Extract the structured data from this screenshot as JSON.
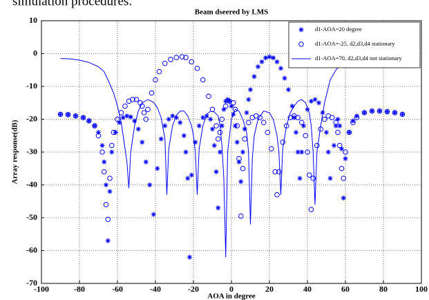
{
  "context_text": "simulation procedures.",
  "chart_data": {
    "type": "line",
    "title": "Beam dseered by LMS",
    "x_label": "AOA in degree",
    "y_label": "Array response(dB)",
    "xlim": [
      -100,
      100
    ],
    "xticks": [
      -100,
      -80,
      -60,
      -40,
      -20,
      0,
      20,
      40,
      60,
      80,
      100
    ],
    "ylim": [
      -70,
      10
    ],
    "yticks": [
      -70,
      -60,
      -50,
      -40,
      -30,
      -20,
      -10,
      0,
      10
    ],
    "grid": true,
    "legend": "top-right",
    "series": [
      {
        "name": "d1-AOA=20 degree",
        "color": "#0000ff",
        "marker": "star",
        "x": [
          -90,
          -86,
          -82,
          -78,
          -75,
          -72,
          -70,
          -68,
          -67,
          -66,
          -65,
          -64,
          -63,
          -61,
          -59,
          -57,
          -55,
          -53,
          -51,
          -49,
          -47,
          -45,
          -43,
          -41,
          -39,
          -37,
          -35,
          -33,
          -31,
          -29,
          -27,
          -25,
          -24,
          -23,
          -22,
          -21,
          -19,
          -17,
          -15,
          -13,
          -11,
          -10,
          -9,
          -8,
          -7,
          -6,
          -5,
          -4,
          -3,
          -2,
          -1,
          0,
          1,
          2,
          3,
          4,
          5,
          6,
          7,
          8,
          9,
          10,
          12,
          14,
          16,
          18,
          20,
          22,
          24,
          26,
          28,
          30,
          32,
          33,
          34,
          35,
          36,
          37,
          38,
          40,
          42,
          44,
          46,
          48,
          50,
          51,
          52,
          54,
          55,
          56,
          57,
          58,
          59,
          60,
          62,
          64,
          66,
          70,
          74,
          78,
          82,
          86,
          90
        ],
        "values": [
          -18.5,
          -18.6,
          -19,
          -19.5,
          -20.5,
          -22,
          -24,
          -28,
          -33,
          -40,
          -57,
          -42,
          -30,
          -24,
          -21,
          -19.5,
          -19,
          -19.3,
          -20.5,
          -23,
          -27,
          -33,
          -40,
          -49,
          -35,
          -26,
          -22,
          -20,
          -19,
          -19.5,
          -21,
          -25,
          -30,
          -38,
          -62,
          -37,
          -27,
          -22,
          -19.5,
          -19,
          -20,
          -23,
          -28,
          -36,
          -47,
          -30,
          -22,
          -17,
          -14.5,
          -14,
          -14.5,
          -16,
          -18.5,
          -22,
          -27,
          -33,
          -39,
          -30,
          -23,
          -18,
          -14,
          -11,
          -7,
          -4,
          -2.5,
          -1.3,
          -1,
          -1.3,
          -2.5,
          -4.5,
          -7.5,
          -11,
          -16,
          -19.5,
          -24,
          -30,
          -38,
          -30,
          -22,
          -17,
          -14.5,
          -14,
          -15,
          -18,
          -24,
          -30,
          -38,
          -28,
          -22,
          -20,
          -22,
          -29,
          -44,
          -32,
          -24,
          -20.5,
          -19,
          -18,
          -17.5,
          -17.5,
          -17.7,
          -18,
          -18.5
        ]
      },
      {
        "name": "d1-AOA=-25, d2,d3,d4 stationary",
        "color": "#0000ff",
        "marker": "circle",
        "x": [
          -90,
          -86,
          -82,
          -78,
          -75,
          -72,
          -70,
          -68,
          -67,
          -66,
          -65,
          -64,
          -63,
          -62,
          -60,
          -58,
          -56,
          -54,
          -52,
          -50,
          -48,
          -47,
          -46,
          -45,
          -44,
          -42,
          -40,
          -38,
          -35,
          -32,
          -29,
          -26,
          -24,
          -21,
          -18,
          -15,
          -12,
          -10,
          -8,
          -7,
          -6,
          -5,
          -3,
          -1,
          1,
          2,
          3,
          4,
          5,
          6,
          7,
          9,
          11,
          13,
          15,
          17,
          19,
          21,
          23,
          24,
          25,
          27,
          29,
          31,
          33,
          35,
          37,
          39,
          40,
          41,
          42,
          43,
          45,
          47,
          49,
          51,
          53,
          55,
          56,
          57,
          58,
          59,
          60,
          62,
          64,
          66,
          70,
          74,
          78,
          82,
          86,
          90
        ],
        "values": [
          -18.5,
          -18.6,
          -19,
          -19.5,
          -20.5,
          -22,
          -25,
          -30,
          -36,
          -46,
          -50.5,
          -38,
          -28,
          -24,
          -20,
          -18,
          -16,
          -14.5,
          -14,
          -14,
          -15,
          -16,
          -18,
          -20,
          -17,
          -12,
          -8,
          -5.5,
          -3,
          -1.8,
          -1.2,
          -1,
          -1.2,
          -2.5,
          -4.5,
          -8,
          -13,
          -17,
          -22,
          -26,
          -24,
          -20,
          -16,
          -14.5,
          -15,
          -17,
          -22,
          -32,
          -49.5,
          -35,
          -26,
          -21,
          -19.5,
          -19,
          -19.5,
          -21,
          -24,
          -29,
          -36,
          -43,
          -36,
          -27,
          -22,
          -19.5,
          -19,
          -19.5,
          -21,
          -25,
          -30,
          -37,
          -47.5,
          -38,
          -28,
          -23,
          -20,
          -19,
          -19.5,
          -21,
          -24,
          -28,
          -35,
          -38,
          -30,
          -24,
          -21,
          -19.5,
          -18,
          -17.5,
          -17.5,
          -17.7,
          -18,
          -18.5
        ]
      },
      {
        "name": "d1-AOA=70, d2,d3,d4 not stationary",
        "color": "#0000ff",
        "marker": "none",
        "x": [
          -90,
          -85,
          -80,
          -75,
          -70,
          -67,
          -65,
          -62,
          -60,
          -58,
          -57,
          -55,
          -54,
          -53,
          -51,
          -49,
          -47,
          -44,
          -41,
          -39,
          -37,
          -35,
          -34,
          -33,
          -31,
          -29,
          -27,
          -25,
          -23,
          -21,
          -20,
          -19,
          -18,
          -17,
          -15,
          -13,
          -11,
          -9,
          -7,
          -6,
          -5,
          -4,
          -3,
          -2,
          -1,
          0,
          2,
          4,
          6,
          8,
          9,
          10,
          11,
          12,
          14,
          17,
          20,
          22,
          24,
          25,
          26,
          27,
          29,
          31,
          33,
          35,
          37,
          39,
          41,
          42,
          43,
          44,
          45,
          47,
          49,
          52,
          55,
          58,
          62,
          65,
          70,
          75,
          80,
          85,
          90
        ],
        "values": [
          -1.5,
          -1.6,
          -2,
          -2.7,
          -4,
          -5.5,
          -8,
          -12,
          -16,
          -21,
          -25,
          -33,
          -41,
          -30,
          -22,
          -17.5,
          -15,
          -14,
          -14.8,
          -16.5,
          -19.5,
          -26,
          -43,
          -29,
          -22,
          -18.8,
          -17.5,
          -17.5,
          -19,
          -22,
          -25,
          -30,
          -43,
          -29,
          -22,
          -18.5,
          -17.5,
          -17.8,
          -19,
          -22,
          -28,
          -38,
          -62,
          -30,
          -25,
          -20,
          -17,
          -17.5,
          -20,
          -24,
          -30,
          -52,
          -32,
          -25,
          -20,
          -17.5,
          -18,
          -20,
          -25,
          -30,
          -43,
          -29,
          -22,
          -18,
          -16,
          -14.5,
          -14,
          -15,
          -18,
          -22,
          -30,
          -46,
          -30,
          -22,
          -15,
          -8,
          -5,
          -3,
          -2,
          -1.5,
          -1,
          -1,
          -1.3,
          -1.4,
          -1.5
        ]
      }
    ]
  }
}
